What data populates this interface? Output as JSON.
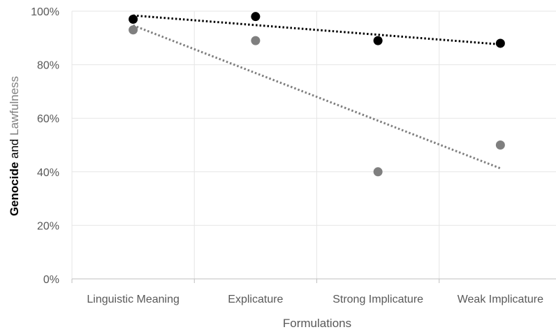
{
  "chart_data": {
    "type": "scatter",
    "categories": [
      "Linguistic Meaning",
      "Explicature",
      "Strong Implicature",
      "Weak Implicature"
    ],
    "series": [
      {
        "name": "Genocide",
        "color": "#000000",
        "values": [
          97,
          98,
          89,
          88
        ],
        "trendline": "linear"
      },
      {
        "name": "Lawfulness",
        "color": "#7f7f7f",
        "values": [
          93,
          89,
          40,
          50
        ],
        "trendline": "linear"
      }
    ],
    "y_ticks": [
      "0%",
      "20%",
      "40%",
      "60%",
      "80%",
      "100%"
    ],
    "ylim": [
      0,
      100
    ],
    "xlabel": "Formulations",
    "ylabel": {
      "bold_part": "Genocide",
      "middle": " and ",
      "gray_part": "Lawfulness"
    },
    "grid": "vertical",
    "legend": "none"
  }
}
